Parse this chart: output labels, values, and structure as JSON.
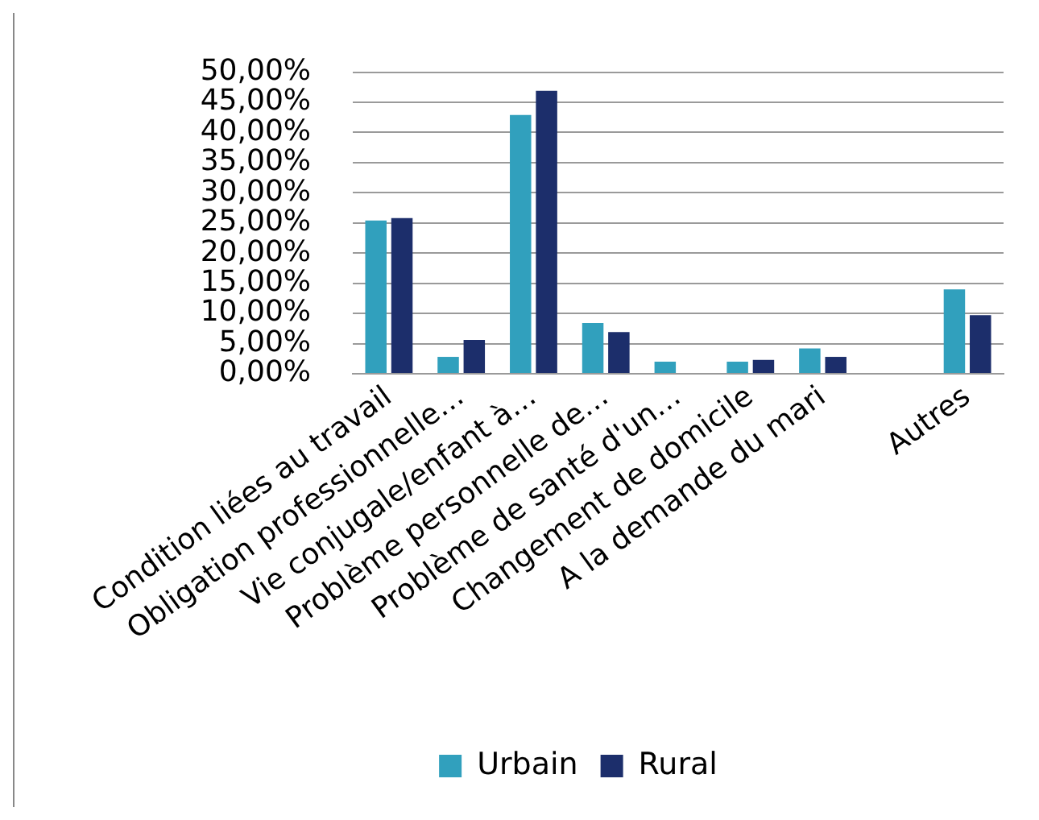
{
  "chart_data": {
    "type": "bar",
    "categories": [
      "Condition liées au travail",
      "Obligation professionnelle…",
      "Vie conjugale/enfant à…",
      "Problème personnelle de…",
      "Problème de santé d'un…",
      "Changement de domicile",
      "A la demande du mari",
      null,
      "Autres"
    ],
    "series": [
      {
        "name": "Urbain",
        "color": "#31a0bd",
        "values": [
          25.4,
          2.8,
          42.9,
          8.4,
          2.0,
          2.0,
          4.2,
          null,
          14.0
        ]
      },
      {
        "name": "Rural",
        "color": "#1c2e6b",
        "values": [
          25.8,
          5.6,
          46.9,
          6.9,
          0,
          2.3,
          2.8,
          null,
          9.7
        ]
      }
    ],
    "ylim": [
      0,
      50
    ],
    "yticks": [
      {
        "value": 0,
        "label": "0,00%"
      },
      {
        "value": 5,
        "label": "5,00%"
      },
      {
        "value": 10,
        "label": "10,00%"
      },
      {
        "value": 15,
        "label": "15,00%"
      },
      {
        "value": 20,
        "label": "20,00%"
      },
      {
        "value": 25,
        "label": "25,00%"
      },
      {
        "value": 30,
        "label": "30,00%"
      },
      {
        "value": 35,
        "label": "35,00%"
      },
      {
        "value": 40,
        "label": "40,00%"
      },
      {
        "value": 45,
        "label": "45,00%"
      },
      {
        "value": 50,
        "label": "50,00%"
      }
    ],
    "grid": "y",
    "legend": "bottom"
  }
}
